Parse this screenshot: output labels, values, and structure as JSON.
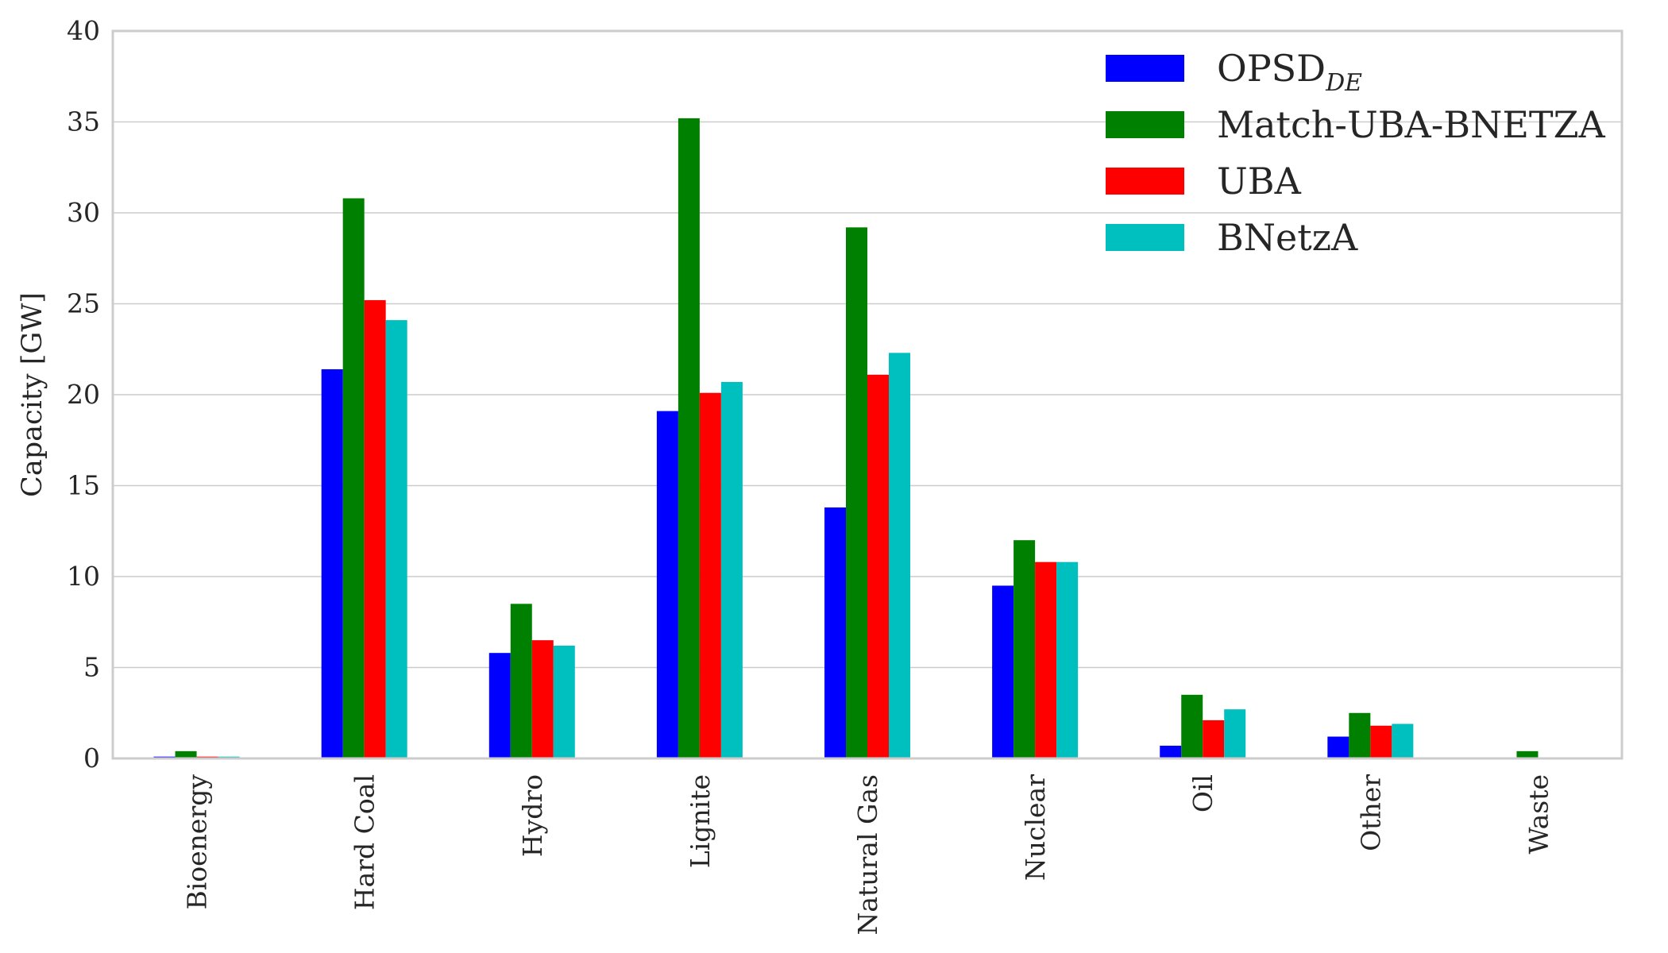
{
  "chart_data": {
    "type": "bar",
    "title": "",
    "xlabel": "",
    "ylabel": "Capacity [GW]",
    "ylim": [
      0,
      40
    ],
    "yticks": [
      0,
      5,
      10,
      15,
      20,
      25,
      30,
      35,
      40
    ],
    "grid": "horizontal",
    "legend_position": "top-right",
    "categories": [
      "Bioenergy",
      "Hard Coal",
      "Hydro",
      "Lignite",
      "Natural Gas",
      "Nuclear",
      "Oil",
      "Other",
      "Waste"
    ],
    "series": [
      {
        "name": "OPSD",
        "name_subscript": "DE",
        "color": "#0000ff",
        "values": [
          0.1,
          21.4,
          5.8,
          19.1,
          13.8,
          9.5,
          0.7,
          1.2,
          0.0
        ]
      },
      {
        "name": "Match-UBA-BNETZA",
        "color": "#008000",
        "values": [
          0.4,
          30.8,
          8.5,
          35.2,
          29.2,
          12.0,
          3.5,
          2.5,
          0.4
        ]
      },
      {
        "name": "UBA",
        "color": "#ff0000",
        "values": [
          0.1,
          25.2,
          6.5,
          20.1,
          21.1,
          10.8,
          2.1,
          1.8,
          0.0
        ]
      },
      {
        "name": "BNetzA",
        "color": "#00bfbf",
        "values": [
          0.1,
          24.1,
          6.2,
          20.7,
          22.3,
          10.8,
          2.7,
          1.9,
          0.0
        ]
      }
    ]
  }
}
